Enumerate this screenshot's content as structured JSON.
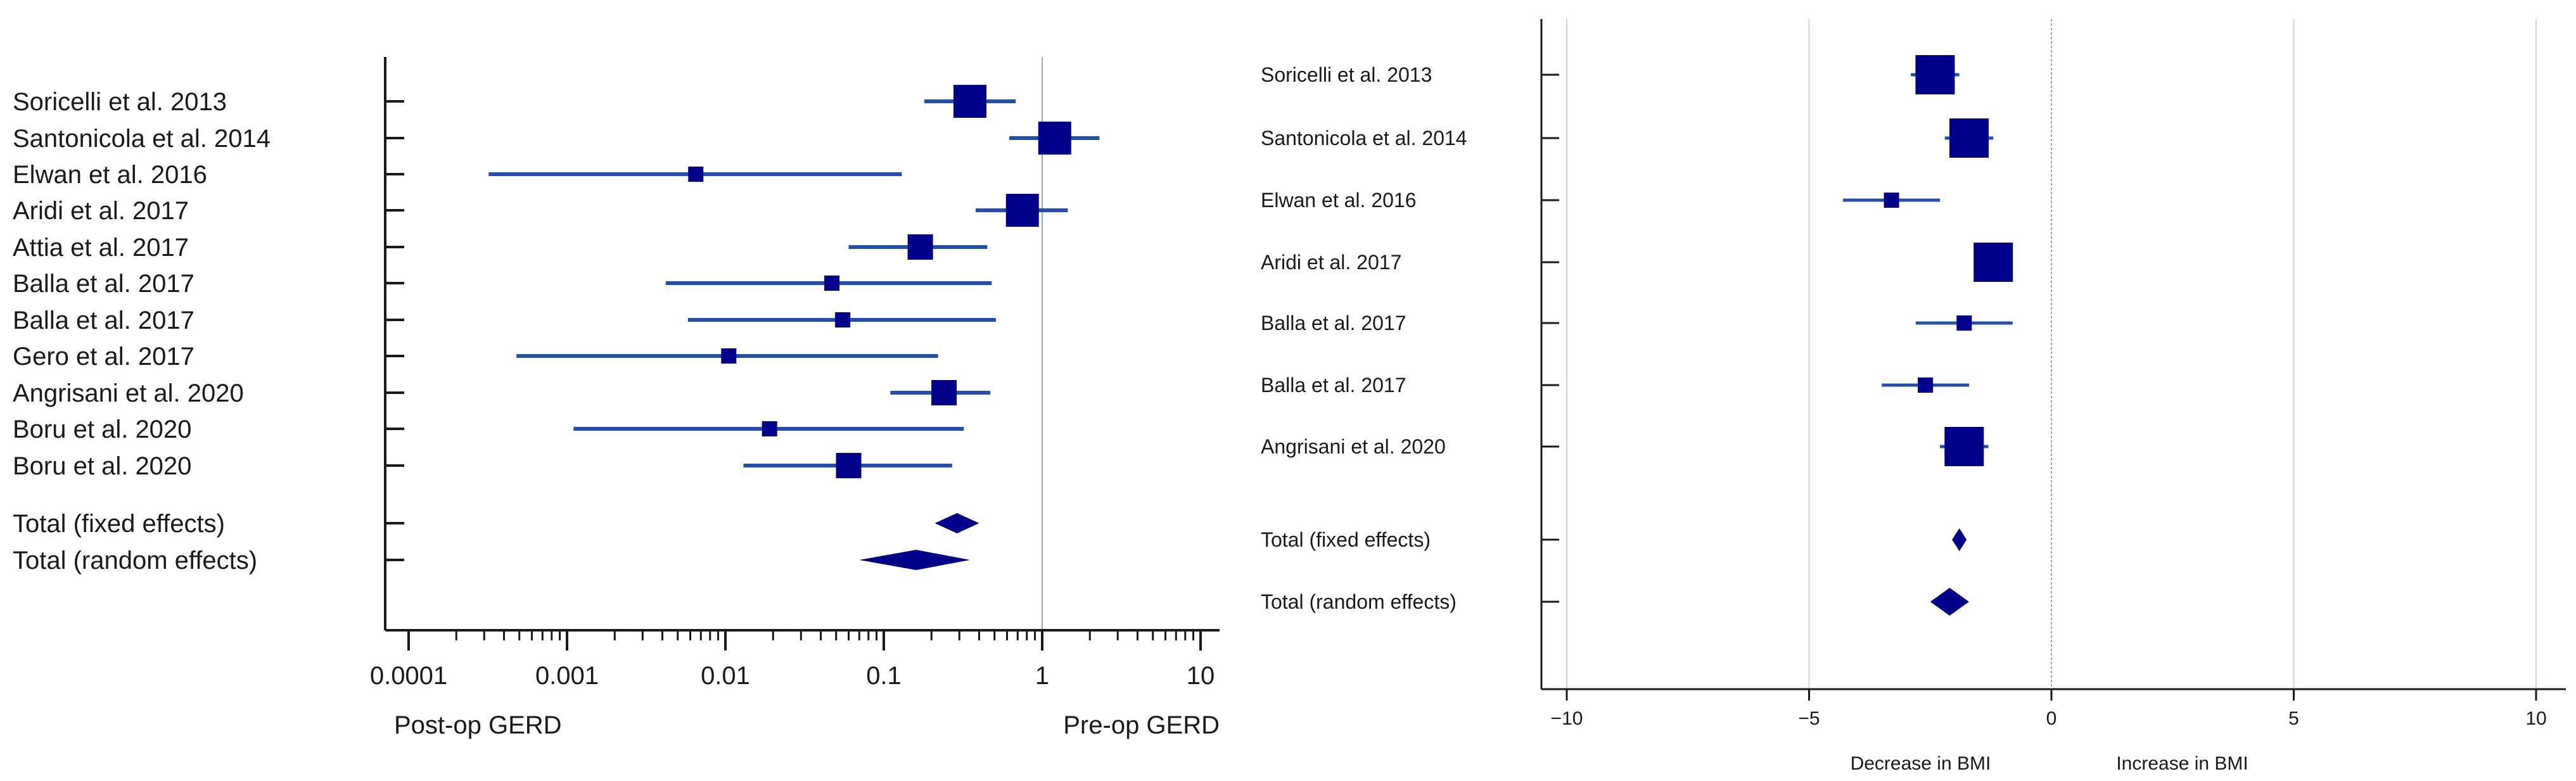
{
  "chart_data": [
    {
      "type": "forest",
      "scale": "log",
      "xlim": [
        0.0001,
        10
      ],
      "x_ticks": [
        "0.0001",
        "0.001",
        "0.01",
        "0.1",
        "1",
        "10"
      ],
      "x_tick_values": [
        0.0001,
        0.001,
        0.01,
        0.1,
        1,
        10
      ],
      "reference_line": 1,
      "xlabel_left": "Post-op GERD",
      "xlabel_right": "Pre-op GERD",
      "studies": [
        {
          "label": "Soricelli et al. 2013",
          "estimate": 0.35,
          "lower": 0.18,
          "upper": 0.68,
          "weight": "large"
        },
        {
          "label": "Santonicola et al. 2014",
          "estimate": 1.2,
          "lower": 0.62,
          "upper": 2.3,
          "weight": "large"
        },
        {
          "label": "Elwan et al. 2016",
          "estimate": 0.0065,
          "lower": 0.00032,
          "upper": 0.13,
          "weight": "small"
        },
        {
          "label": "Aridi et al. 2017",
          "estimate": 0.75,
          "lower": 0.38,
          "upper": 1.45,
          "weight": "large"
        },
        {
          "label": "Attia et al. 2017",
          "estimate": 0.17,
          "lower": 0.06,
          "upper": 0.45,
          "weight": "medium"
        },
        {
          "label": "Balla et al. 2017",
          "estimate": 0.047,
          "lower": 0.0042,
          "upper": 0.48,
          "weight": "small"
        },
        {
          "label": "Balla et al. 2017",
          "estimate": 0.055,
          "lower": 0.0058,
          "upper": 0.51,
          "weight": "small"
        },
        {
          "label": "Gero et al. 2017",
          "estimate": 0.0105,
          "lower": 0.00048,
          "upper": 0.22,
          "weight": "small"
        },
        {
          "label": "Angrisani et al. 2020",
          "estimate": 0.24,
          "lower": 0.11,
          "upper": 0.47,
          "weight": "medium"
        },
        {
          "label": "Boru et al. 2020",
          "estimate": 0.019,
          "lower": 0.0011,
          "upper": 0.32,
          "weight": "small"
        },
        {
          "label": "Boru et al. 2020",
          "estimate": 0.06,
          "lower": 0.013,
          "upper": 0.27,
          "weight": "medium"
        }
      ],
      "totals": [
        {
          "label": "Total (fixed effects)",
          "estimate": 0.29,
          "lower": 0.21,
          "upper": 0.4
        },
        {
          "label": "Total (random effects)",
          "estimate": 0.16,
          "lower": 0.07,
          "upper": 0.35
        }
      ]
    },
    {
      "type": "forest",
      "scale": "linear",
      "xlim": [
        -10,
        10
      ],
      "x_ticks": [
        "−10",
        "−5",
        "0",
        "5",
        "10"
      ],
      "x_tick_values": [
        -10,
        -5,
        0,
        5,
        10
      ],
      "reference_line": 0,
      "grid": true,
      "xlabel_left": "Decrease in BMI",
      "xlabel_right": "Increase in BMI",
      "studies": [
        {
          "label": "Soricelli et al. 2013",
          "estimate": -2.4,
          "lower": -2.9,
          "upper": -1.9,
          "weight": "large"
        },
        {
          "label": "Santonicola et al. 2014",
          "estimate": -1.7,
          "lower": -2.2,
          "upper": -1.2,
          "weight": "large"
        },
        {
          "label": "Elwan et al. 2016",
          "estimate": -3.3,
          "lower": -4.3,
          "upper": -2.3,
          "weight": "small"
        },
        {
          "label": "Aridi et al. 2017",
          "estimate": -1.2,
          "lower": -1.6,
          "upper": -0.8,
          "weight": "large"
        },
        {
          "label": "Balla et al. 2017",
          "estimate": -1.8,
          "lower": -2.8,
          "upper": -0.8,
          "weight": "small"
        },
        {
          "label": "Balla et al. 2017",
          "estimate": -2.6,
          "lower": -3.5,
          "upper": -1.7,
          "weight": "small"
        },
        {
          "label": "Angrisani et al. 2020",
          "estimate": -1.8,
          "lower": -2.3,
          "upper": -1.3,
          "weight": "large"
        }
      ],
      "totals": [
        {
          "label": "Total (fixed effects)",
          "estimate": -1.9,
          "lower": -2.05,
          "upper": -1.75
        },
        {
          "label": "Total (random effects)",
          "estimate": -2.1,
          "lower": -2.5,
          "upper": -1.7
        }
      ]
    }
  ],
  "colors": {
    "marker": "#00008b",
    "ci": "#1f4fb5",
    "refline": "#8fa7d6",
    "grid": "#c9d4ea",
    "axis": "#1a1a1a"
  }
}
